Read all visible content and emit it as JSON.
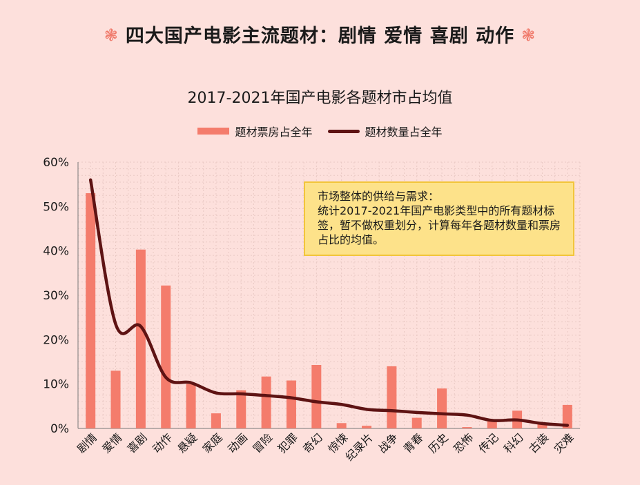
{
  "header": {
    "flower_left": "❃",
    "title": "四大国产电影主流题材：剧情 爱情 喜剧 动作",
    "flower_right": "❃"
  },
  "chart_data": {
    "type": "bar",
    "title": "2017-2021年国产电影各题材市占均值",
    "categories": [
      "剧情",
      "爱情",
      "喜剧",
      "动作",
      "悬疑",
      "家庭",
      "动画",
      "冒险",
      "犯罪",
      "奇幻",
      "惊悚",
      "纪录片",
      "战争",
      "青春",
      "历史",
      "恐怖",
      "传记",
      "科幻",
      "古装",
      "灾难"
    ],
    "series": [
      {
        "name": "题材票房占全年",
        "type": "bar",
        "color": "#f47c6c",
        "values": [
          53,
          13,
          40.3,
          32.2,
          10,
          3.4,
          8.6,
          11.7,
          10.8,
          14.3,
          1.2,
          0.6,
          14,
          2.4,
          9,
          0.3,
          1.8,
          4,
          1,
          5.3
        ]
      },
      {
        "name": "题材数量占全年",
        "type": "line",
        "color": "#5e1313",
        "values": [
          56,
          23.5,
          23,
          11.5,
          10.3,
          8,
          7.8,
          7.4,
          6.9,
          6,
          5.4,
          4.3,
          4,
          3.6,
          3.3,
          3,
          1.8,
          1.9,
          1.1,
          0.7
        ]
      }
    ],
    "ylim": [
      0,
      60
    ],
    "yticks": [
      0,
      10,
      20,
      30,
      40,
      50,
      60
    ],
    "ytick_labels": [
      "0%",
      "10%",
      "20%",
      "30%",
      "40%",
      "50%",
      "60%"
    ],
    "grid": true,
    "legend_position": "top-center"
  },
  "note": {
    "heading": "市场整体的供给与需求：",
    "body": "统计2017-2021年国产电影类型中的所有题材标签，暂不做权重划分，计算每年各题材数量和票房占比的均值。"
  }
}
